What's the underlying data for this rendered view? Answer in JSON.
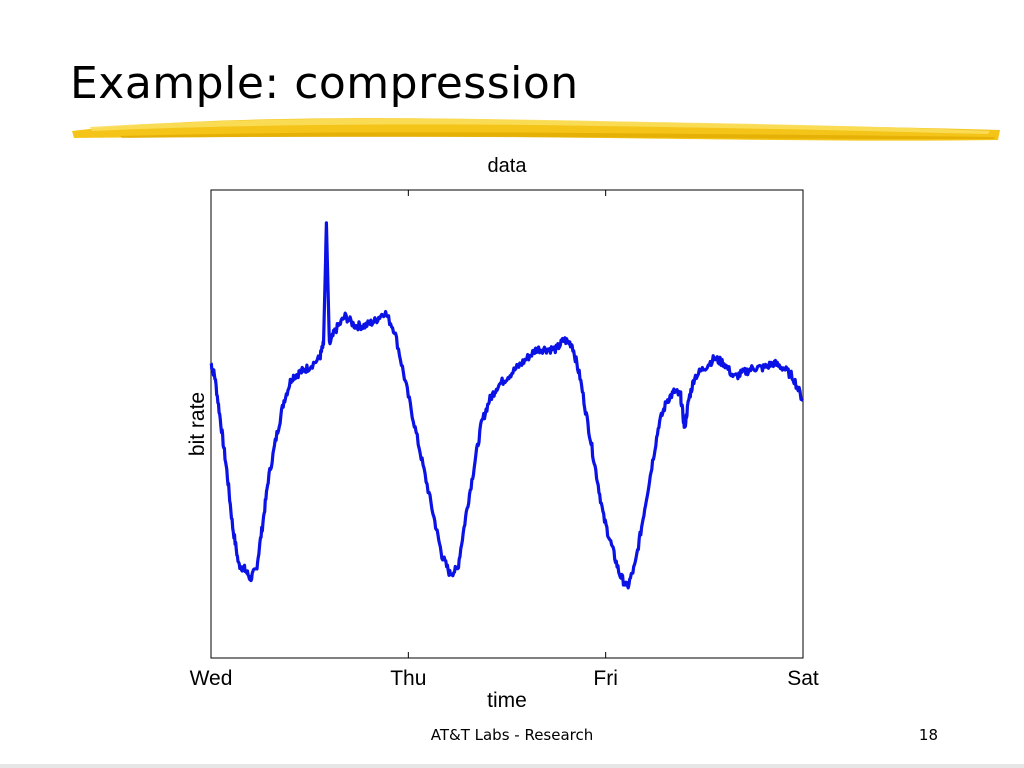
{
  "slide": {
    "title": "Example: compression",
    "footer": "AT&T Labs - Research",
    "page_number": "18"
  },
  "colors": {
    "accent_underline": "#f3c20c",
    "accent_underline_light": "#f9dd5b",
    "series": "#0a12e6"
  },
  "chart_data": {
    "type": "line",
    "title": "data",
    "xlabel": "time",
    "ylabel": "bit rate",
    "x_tick_labels": [
      "Wed",
      "Thu",
      "Fri",
      "Sat"
    ],
    "x_ticks": [
      0,
      1,
      2,
      3
    ],
    "xlim": [
      0,
      3
    ],
    "ylim": [
      0,
      1
    ],
    "grid": false,
    "y_tick_labels_shown": false,
    "series": [
      {
        "name": "",
        "points": [
          [
            0.0,
            0.63
          ],
          [
            0.02,
            0.6
          ],
          [
            0.05,
            0.5
          ],
          [
            0.08,
            0.4
          ],
          [
            0.11,
            0.28
          ],
          [
            0.14,
            0.2
          ],
          [
            0.17,
            0.19
          ],
          [
            0.2,
            0.17
          ],
          [
            0.23,
            0.19
          ],
          [
            0.26,
            0.28
          ],
          [
            0.29,
            0.38
          ],
          [
            0.33,
            0.47
          ],
          [
            0.37,
            0.55
          ],
          [
            0.41,
            0.6
          ],
          [
            0.45,
            0.61
          ],
          [
            0.49,
            0.62
          ],
          [
            0.55,
            0.64
          ],
          [
            0.57,
            0.67
          ],
          [
            0.585,
            0.93
          ],
          [
            0.6,
            0.67
          ],
          [
            0.63,
            0.7
          ],
          [
            0.68,
            0.73
          ],
          [
            0.73,
            0.71
          ],
          [
            0.78,
            0.71
          ],
          [
            0.83,
            0.72
          ],
          [
            0.88,
            0.74
          ],
          [
            0.93,
            0.7
          ],
          [
            0.98,
            0.6
          ],
          [
            1.03,
            0.5
          ],
          [
            1.08,
            0.4
          ],
          [
            1.13,
            0.3
          ],
          [
            1.17,
            0.22
          ],
          [
            1.21,
            0.18
          ],
          [
            1.25,
            0.19
          ],
          [
            1.29,
            0.3
          ],
          [
            1.33,
            0.4
          ],
          [
            1.37,
            0.5
          ],
          [
            1.41,
            0.55
          ],
          [
            1.45,
            0.58
          ],
          [
            1.5,
            0.6
          ],
          [
            1.55,
            0.62
          ],
          [
            1.6,
            0.64
          ],
          [
            1.65,
            0.66
          ],
          [
            1.7,
            0.66
          ],
          [
            1.75,
            0.66
          ],
          [
            1.79,
            0.68
          ],
          [
            1.83,
            0.67
          ],
          [
            1.87,
            0.6
          ],
          [
            1.91,
            0.5
          ],
          [
            1.95,
            0.4
          ],
          [
            1.99,
            0.3
          ],
          [
            2.03,
            0.24
          ],
          [
            2.07,
            0.18
          ],
          [
            2.11,
            0.15
          ],
          [
            2.15,
            0.2
          ],
          [
            2.19,
            0.3
          ],
          [
            2.23,
            0.4
          ],
          [
            2.27,
            0.5
          ],
          [
            2.31,
            0.55
          ],
          [
            2.35,
            0.57
          ],
          [
            2.38,
            0.56
          ],
          [
            2.4,
            0.49
          ],
          [
            2.42,
            0.55
          ],
          [
            2.45,
            0.6
          ],
          [
            2.5,
            0.62
          ],
          [
            2.55,
            0.64
          ],
          [
            2.6,
            0.63
          ],
          [
            2.65,
            0.6
          ],
          [
            2.7,
            0.61
          ],
          [
            2.75,
            0.62
          ],
          [
            2.8,
            0.62
          ],
          [
            2.85,
            0.63
          ],
          [
            2.9,
            0.62
          ],
          [
            2.95,
            0.6
          ],
          [
            3.0,
            0.55
          ]
        ]
      }
    ]
  }
}
